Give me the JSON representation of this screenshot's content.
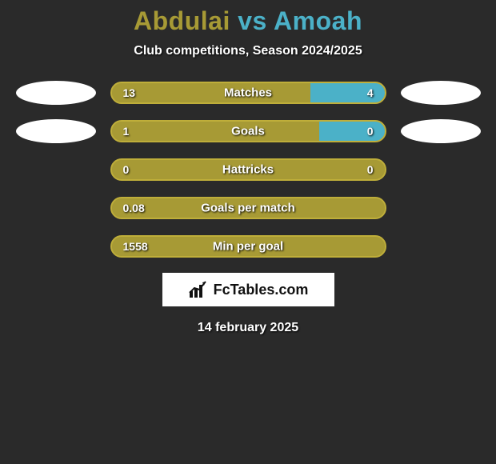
{
  "title": {
    "player1": "Abdulai",
    "vs": "vs",
    "player2": "Amoah",
    "color_player1": "#a79a35",
    "color_vs": "#4bb1c8",
    "color_player2": "#4bb1c8"
  },
  "subtitle": "Club competitions, Season 2024/2025",
  "background_color": "#2a2a2a",
  "bar_colors": {
    "left": "#a79a35",
    "right": "#4bb1c8",
    "border": "#bfae3a"
  },
  "avatar_color": "#ffffff",
  "rows": [
    {
      "label": "Matches",
      "left_val": "13",
      "right_val": "4",
      "left_pct": 73,
      "right_pct": 27,
      "show_avatars": true
    },
    {
      "label": "Goals",
      "left_val": "1",
      "right_val": "0",
      "left_pct": 76,
      "right_pct": 24,
      "show_avatars": true
    },
    {
      "label": "Hattricks",
      "left_val": "0",
      "right_val": "0",
      "left_pct": 100,
      "right_pct": 0,
      "show_avatars": false
    },
    {
      "label": "Goals per match",
      "left_val": "0.08",
      "right_val": "",
      "left_pct": 100,
      "right_pct": 0,
      "show_avatars": false
    },
    {
      "label": "Min per goal",
      "left_val": "1558",
      "right_val": "",
      "left_pct": 100,
      "right_pct": 0,
      "show_avatars": false
    }
  ],
  "brand": "FcTables.com",
  "date": "14 february 2025"
}
